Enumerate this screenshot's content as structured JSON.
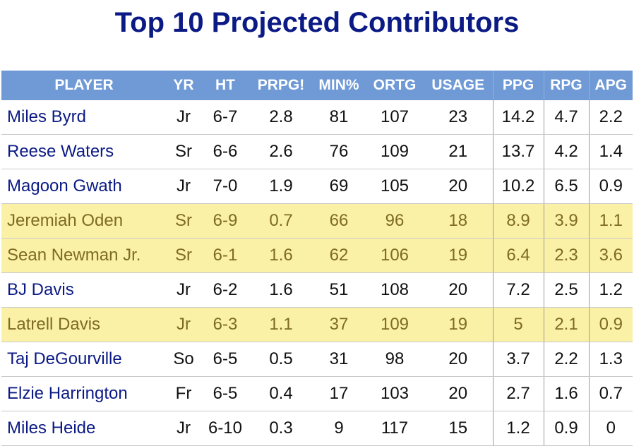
{
  "title": "Top 10 Projected Contributors",
  "columns": [
    "PLAYER",
    "YR",
    "HT",
    "PRPG!",
    "MIN%",
    "ORTG",
    "USAGE",
    "PPG",
    "RPG",
    "APG"
  ],
  "colors": {
    "title": "#0b1a84",
    "header_bg": "#6f9ad6",
    "highlight_bg": "#fbf1a6",
    "highlight_text": "#7d6a24"
  },
  "rows": [
    {
      "player": "Miles Byrd",
      "yr": "Jr",
      "ht": "6-7",
      "prpg": "2.8",
      "min": "81",
      "ortg": "107",
      "usage": "23",
      "ppg": "14.2",
      "rpg": "4.7",
      "apg": "2.2",
      "highlighted": false
    },
    {
      "player": "Reese Waters",
      "yr": "Sr",
      "ht": "6-6",
      "prpg": "2.6",
      "min": "76",
      "ortg": "109",
      "usage": "21",
      "ppg": "13.7",
      "rpg": "4.2",
      "apg": "1.4",
      "highlighted": false
    },
    {
      "player": "Magoon Gwath",
      "yr": "Jr",
      "ht": "7-0",
      "prpg": "1.9",
      "min": "69",
      "ortg": "105",
      "usage": "20",
      "ppg": "10.2",
      "rpg": "6.5",
      "apg": "0.9",
      "highlighted": false
    },
    {
      "player": "Jeremiah Oden",
      "yr": "Sr",
      "ht": "6-9",
      "prpg": "0.7",
      "min": "66",
      "ortg": "96",
      "usage": "18",
      "ppg": "8.9",
      "rpg": "3.9",
      "apg": "1.1",
      "highlighted": true
    },
    {
      "player": "Sean Newman Jr.",
      "yr": "Sr",
      "ht": "6-1",
      "prpg": "1.6",
      "min": "62",
      "ortg": "106",
      "usage": "19",
      "ppg": "6.4",
      "rpg": "2.3",
      "apg": "3.6",
      "highlighted": true
    },
    {
      "player": "BJ Davis",
      "yr": "Jr",
      "ht": "6-2",
      "prpg": "1.6",
      "min": "51",
      "ortg": "108",
      "usage": "20",
      "ppg": "7.2",
      "rpg": "2.5",
      "apg": "1.2",
      "highlighted": false
    },
    {
      "player": "Latrell Davis",
      "yr": "Jr",
      "ht": "6-3",
      "prpg": "1.1",
      "min": "37",
      "ortg": "109",
      "usage": "19",
      "ppg": "5",
      "rpg": "2.1",
      "apg": "0.9",
      "highlighted": true
    },
    {
      "player": "Taj DeGourville",
      "yr": "So",
      "ht": "6-5",
      "prpg": "0.5",
      "min": "31",
      "ortg": "98",
      "usage": "20",
      "ppg": "3.7",
      "rpg": "2.2",
      "apg": "1.3",
      "highlighted": false
    },
    {
      "player": "Elzie Harrington",
      "yr": "Fr",
      "ht": "6-5",
      "prpg": "0.4",
      "min": "17",
      "ortg": "103",
      "usage": "20",
      "ppg": "2.7",
      "rpg": "1.6",
      "apg": "0.7",
      "highlighted": false
    },
    {
      "player": "Miles Heide",
      "yr": "Jr",
      "ht": "6-10",
      "prpg": "0.3",
      "min": "9",
      "ortg": "117",
      "usage": "15",
      "ppg": "1.2",
      "rpg": "0.9",
      "apg": "0",
      "highlighted": false
    }
  ]
}
